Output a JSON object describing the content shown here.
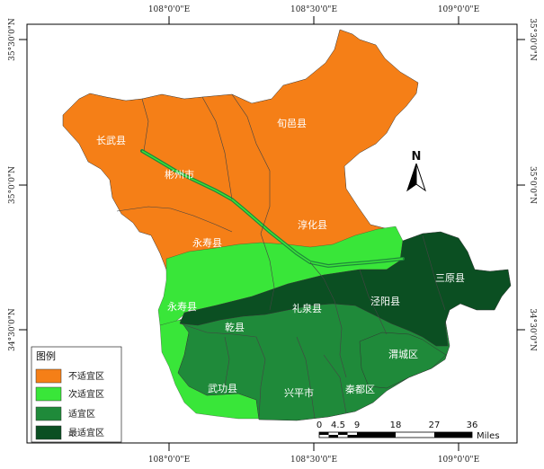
{
  "coordinates": {
    "top": [
      "108°0'0\"E",
      "108°30'0\"E",
      "109°0'0\"E"
    ],
    "bottom": [
      "108°0'0\"E",
      "108°30'0\"E",
      "109°0'0\"E"
    ],
    "left": [
      "35°30'0\"N",
      "35°0'0\"N",
      "34°30'0\"N"
    ],
    "right": [
      "35°30'0\"N",
      "35°0'0\"N",
      "34°30'0\"N"
    ]
  },
  "counties": {
    "changwu": "长武县",
    "xunyi": "旬邑县",
    "binzhou": "彬州市",
    "chunhua": "淳化县",
    "yongshou": "永寿县",
    "sanyuan": "三原县",
    "yongshou2": "永寿县",
    "liquan": "礼泉县",
    "jingyang": "泾阳县",
    "qianxian": "乾县",
    "weicheng": "渭城区",
    "wugong": "武功县",
    "xingping": "兴平市",
    "qindu": "秦都区"
  },
  "legend": {
    "title": "图例",
    "items": [
      {
        "label": "不适宜区",
        "color": "#f57f17"
      },
      {
        "label": "次适宜区",
        "color": "#39e639"
      },
      {
        "label": "适宜区",
        "color": "#1f8a3a"
      },
      {
        "label": "最适宜区",
        "color": "#0b4f22"
      }
    ]
  },
  "north_arrow": {
    "label": "N",
    "icon": "north-arrow-icon"
  },
  "scale_bar": {
    "ticks": [
      "0",
      "4.5",
      "9",
      "18",
      "27",
      "36"
    ],
    "unit": "Miles"
  },
  "colors": {
    "unsuitable": "#f57f17",
    "sub_suitable": "#39e639",
    "suitable": "#1f8a3a",
    "most_suitable": "#0b4f22"
  }
}
